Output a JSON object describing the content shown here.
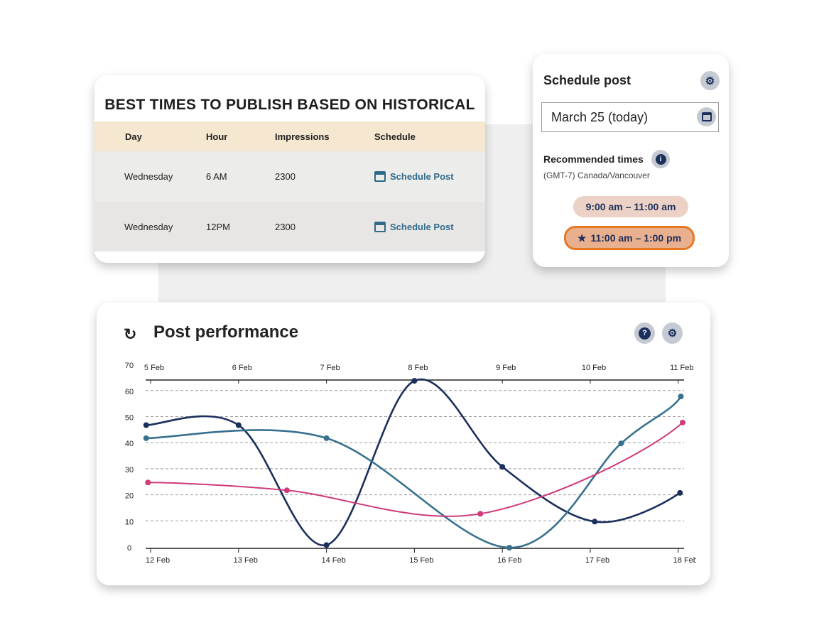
{
  "best_times": {
    "title": "BEST TIMES TO PUBLISH BASED ON HISTORICAL",
    "headers": [
      "Day",
      "Hour",
      "Impressions",
      "Schedule"
    ],
    "rows": [
      {
        "day": "Wednesday",
        "hour": "6 AM",
        "impressions": "2300",
        "action": "Schedule Post"
      },
      {
        "day": "Wednesday",
        "hour": "12PM",
        "impressions": "2300",
        "action": "Schedule Post"
      }
    ]
  },
  "schedule_post": {
    "title": "Schedule post",
    "date_value": "March 25 (today)",
    "recommended_label": "Recommended times",
    "timezone": "(GMT-7) Canada/Vancouver",
    "times": [
      "9:00 am – 11:00 am",
      "11:00 am – 1:00 pm"
    ],
    "starred_time_index": 1
  },
  "performance": {
    "title": "Post performance",
    "help_icon": "?"
  },
  "colors": {
    "navy": "#1b2f5b",
    "teal": "#37718e",
    "pink": "#cf3a7a",
    "accent_orange": "#e87722",
    "header_beige": "#f5e7d0"
  },
  "chart_data": {
    "type": "line",
    "ylim": [
      0,
      70
    ],
    "yticks": [
      0,
      10,
      20,
      30,
      40,
      50,
      60,
      70
    ],
    "grid": "horizontal dashed",
    "x_bottom_ticks": [
      "12 Feb",
      "13 Feb",
      "14 Feb",
      "15 Feb",
      "16 Feb",
      "17 Feb",
      "18 Feb"
    ],
    "x_top_ticks": [
      "5 Feb",
      "6 Feb",
      "7 Feb",
      "8 Feb",
      "9 Feb",
      "10 Feb",
      "11 Feb"
    ],
    "series": [
      {
        "color": "#1b2f5b",
        "x": [
          11.95,
          13,
          14,
          15,
          16,
          17.05,
          18.02
        ],
        "y": [
          47,
          47,
          1,
          64,
          31,
          10,
          21
        ]
      },
      {
        "color": "#37718e",
        "x": [
          11.95,
          14,
          16.08,
          17.35,
          18.03
        ],
        "y": [
          42,
          42,
          0,
          40,
          58
        ]
      },
      {
        "color": "#cf3a7a",
        "x": [
          11.97,
          13.55,
          15.75,
          18.05
        ],
        "y": [
          25,
          22,
          13,
          48
        ]
      }
    ]
  }
}
